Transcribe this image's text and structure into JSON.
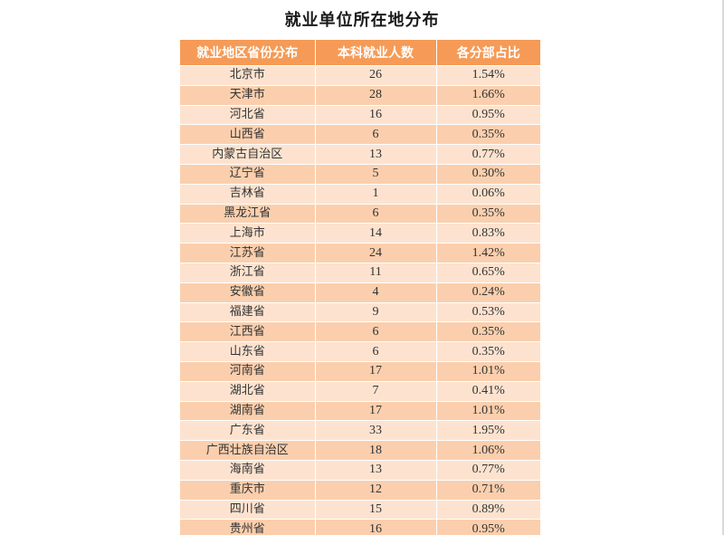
{
  "title": "就业单位所在地分布",
  "table": {
    "headers": [
      "就业地区省份分布",
      "本科就业人数",
      "各分部占比"
    ],
    "rows": [
      [
        "北京市",
        "26",
        "1.54%"
      ],
      [
        "天津市",
        "28",
        "1.66%"
      ],
      [
        "河北省",
        "16",
        "0.95%"
      ],
      [
        "山西省",
        "6",
        "0.35%"
      ],
      [
        "内蒙古自治区",
        "13",
        "0.77%"
      ],
      [
        "辽宁省",
        "5",
        "0.30%"
      ],
      [
        "吉林省",
        "1",
        "0.06%"
      ],
      [
        "黑龙江省",
        "6",
        "0.35%"
      ],
      [
        "上海市",
        "14",
        "0.83%"
      ],
      [
        "江苏省",
        "24",
        "1.42%"
      ],
      [
        "浙江省",
        "11",
        "0.65%"
      ],
      [
        "安徽省",
        "4",
        "0.24%"
      ],
      [
        "福建省",
        "9",
        "0.53%"
      ],
      [
        "江西省",
        "6",
        "0.35%"
      ],
      [
        "山东省",
        "6",
        "0.35%"
      ],
      [
        "河南省",
        "17",
        "1.01%"
      ],
      [
        "湖北省",
        "7",
        "0.41%"
      ],
      [
        "湖南省",
        "17",
        "1.01%"
      ],
      [
        "广东省",
        "33",
        "1.95%"
      ],
      [
        "广西壮族自治区",
        "18",
        "1.06%"
      ],
      [
        "海南省",
        "13",
        "0.77%"
      ],
      [
        "重庆市",
        "12",
        "0.71%"
      ],
      [
        "四川省",
        "15",
        "0.89%"
      ],
      [
        "贵州省",
        "16",
        "0.95%"
      ]
    ]
  },
  "colors": {
    "header": "#f59b57",
    "row_light": "#fde3cf",
    "row_dark": "#fbcfad"
  }
}
